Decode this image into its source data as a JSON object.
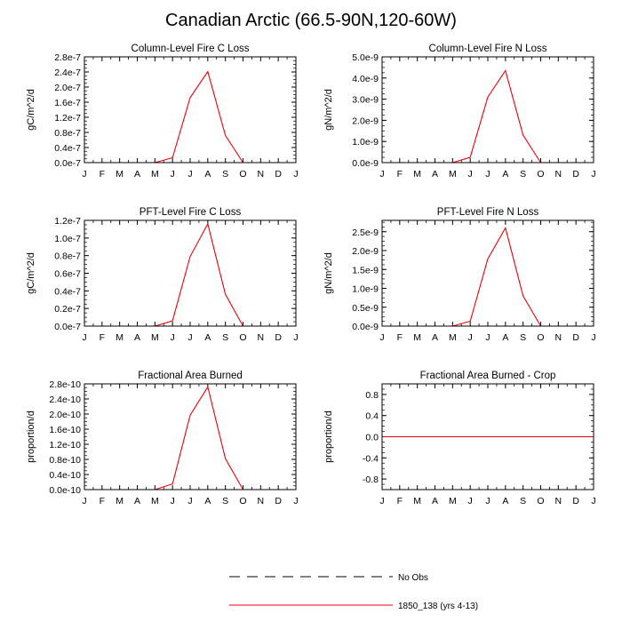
{
  "title": "Canadian Arctic (66.5-90N,120-60W)",
  "month_labels": [
    "J",
    "F",
    "M",
    "A",
    "M",
    "J",
    "J",
    "A",
    "S",
    "O",
    "N",
    "D",
    "J"
  ],
  "chart_data": [
    {
      "type": "line",
      "title": "Column-Level Fire C Loss",
      "ylabel": "gC/m^2/d",
      "ylim": [
        0,
        2.8e-07
      ],
      "yticks": [
        "0.0e-7",
        "0.4e-7",
        "0.8e-7",
        "1.2e-7",
        "1.6e-7",
        "2.0e-7",
        "2.4e-7",
        "2.8e-7"
      ],
      "ytick_values": [
        0,
        4e-08,
        8e-08,
        1.2e-07,
        1.6e-07,
        2e-07,
        2.4e-07,
        2.8e-07
      ],
      "series": [
        {
          "name": "1850_138 (yrs 4-13)",
          "color": "#e8000b",
          "values": [
            0,
            0,
            0,
            0,
            0,
            1.3e-08,
            1.72e-07,
            2.41e-07,
            7.2e-08,
            0,
            0,
            0,
            0
          ]
        }
      ]
    },
    {
      "type": "line",
      "title": "Column-Level Fire N Loss",
      "ylabel": "gN/m^2/d",
      "ylim": [
        0,
        5e-09
      ],
      "yticks": [
        "0.0e-9",
        "1.0e-9",
        "2.0e-9",
        "3.0e-9",
        "4.0e-9",
        "5.0e-9"
      ],
      "ytick_values": [
        0,
        1e-09,
        2e-09,
        3e-09,
        4e-09,
        5e-09
      ],
      "series": [
        {
          "name": "1850_138 (yrs 4-13)",
          "color": "#e8000b",
          "values": [
            0,
            0,
            0,
            0,
            0,
            2.5e-10,
            3.1e-09,
            4.35e-09,
            1.3e-09,
            0,
            0,
            0,
            0
          ]
        }
      ]
    },
    {
      "type": "line",
      "title": "PFT-Level Fire C Loss",
      "ylabel": "gC/m^2/d",
      "ylim": [
        0,
        1.2e-07
      ],
      "yticks": [
        "0.0e-7",
        "0.2e-7",
        "0.4e-7",
        "0.6e-7",
        "0.8e-7",
        "1.0e-7",
        "1.2e-7"
      ],
      "ytick_values": [
        0,
        2e-08,
        4e-08,
        6e-08,
        8e-08,
        1e-07,
        1.2e-07
      ],
      "series": [
        {
          "name": "1850_138 (yrs 4-13)",
          "color": "#e8000b",
          "values": [
            0,
            0,
            0,
            0,
            0,
            6e-09,
            7.9e-08,
            1.16e-07,
            3.6e-08,
            0,
            0,
            0,
            0
          ]
        }
      ]
    },
    {
      "type": "line",
      "title": "PFT-Level Fire N Loss",
      "ylabel": "gN/m^2/d",
      "ylim": [
        0,
        2.8e-09
      ],
      "yticks": [
        "0.0e-9",
        "0.5e-9",
        "1.0e-9",
        "1.5e-9",
        "2.0e-9",
        "2.5e-9"
      ],
      "ytick_values": [
        0,
        5e-10,
        1e-09,
        1.5e-09,
        2e-09,
        2.5e-09
      ],
      "series": [
        {
          "name": "1850_138 (yrs 4-13)",
          "color": "#e8000b",
          "values": [
            0,
            0,
            0,
            0,
            0,
            1.3e-10,
            1.78e-09,
            2.6e-09,
            8e-10,
            0,
            0,
            0,
            0
          ]
        }
      ]
    },
    {
      "type": "line",
      "title": "Fractional Area Burned",
      "ylabel": "proportion/d",
      "ylim": [
        0,
        2.8e-10
      ],
      "yticks": [
        "0.0e-10",
        "0.4e-10",
        "0.8e-10",
        "1.2e-10",
        "1.6e-10",
        "2.0e-10",
        "2.4e-10",
        "2.8e-10"
      ],
      "ytick_values": [
        0,
        4e-11,
        8e-11,
        1.2e-10,
        1.6e-10,
        2e-10,
        2.4e-10,
        2.8e-10
      ],
      "series": [
        {
          "name": "1850_138 (yrs 4-13)",
          "color": "#e8000b",
          "values": [
            0,
            0,
            0,
            0,
            0,
            1.5e-11,
            1.97e-10,
            2.72e-10,
            8.2e-11,
            0,
            0,
            0,
            0
          ]
        }
      ]
    },
    {
      "type": "line",
      "title": "Fractional Area Burned - Crop",
      "ylabel": "proportion/d",
      "ylim": [
        -1,
        1
      ],
      "yticks": [
        "-0.8",
        "-0.4",
        "0.0",
        "0.4",
        "0.8"
      ],
      "ytick_values": [
        -0.8,
        -0.4,
        0,
        0.4,
        0.8
      ],
      "series": [
        {
          "name": "1850_138 (yrs 4-13)",
          "color": "#e8000b",
          "values": [
            0,
            0,
            0,
            0,
            0,
            0,
            0,
            0,
            0,
            0,
            0,
            0,
            0
          ]
        }
      ]
    }
  ],
  "legend": [
    {
      "label": "No Obs",
      "style": "dashed",
      "color": "#000000"
    },
    {
      "label": "1850_138 (yrs 4-13)",
      "style": "solid",
      "color": "#e8000b"
    }
  ]
}
